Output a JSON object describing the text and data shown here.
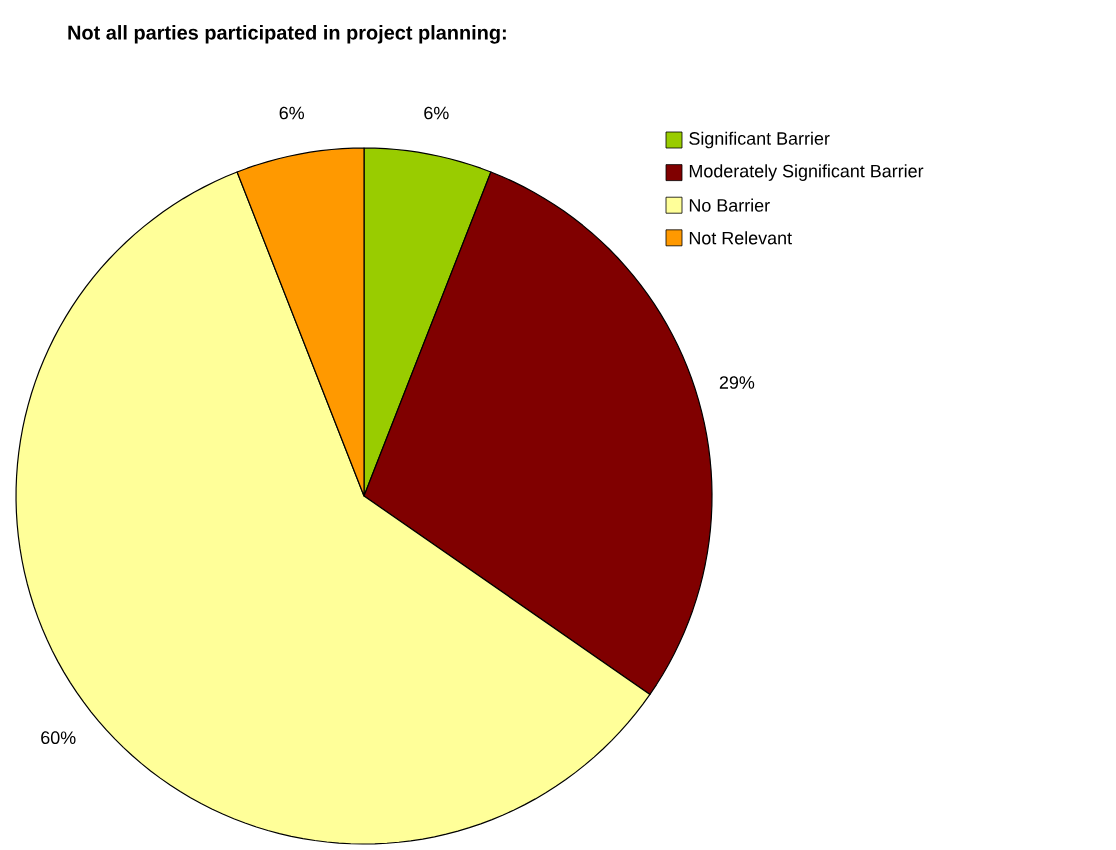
{
  "chart_data": {
    "type": "pie",
    "title": "Not all parties participated in project planning:",
    "categories": [
      "Significant Barrier",
      "Moderately Significant Barrier",
      "No Barrier",
      "Not Relevant"
    ],
    "values": [
      6,
      29,
      60,
      6
    ],
    "value_labels": [
      "6%",
      "29%",
      "60%",
      "6%"
    ],
    "colors": [
      "#99cc00",
      "#800000",
      "#ffff99",
      "#ff9900"
    ],
    "legend": "right"
  }
}
